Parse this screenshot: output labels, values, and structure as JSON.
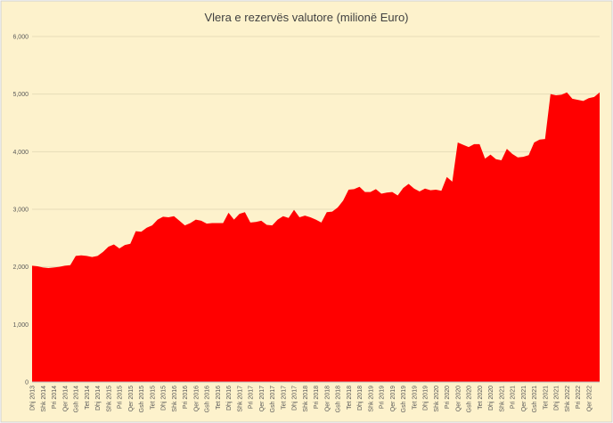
{
  "chart_data": {
    "type": "area",
    "title": "Vlera e rezervës valutore (milionë Euro)",
    "color": "#ff0000",
    "background": "#fdf2cc",
    "grid": true,
    "ylim": [
      0,
      6000
    ],
    "yticks": [
      {
        "value": 0,
        "label": "0"
      },
      {
        "value": 1000,
        "label": "1,000"
      },
      {
        "value": 2000,
        "label": "2,000"
      },
      {
        "value": 3000,
        "label": "3,000"
      },
      {
        "value": 4000,
        "label": "4,000"
      },
      {
        "value": 5000,
        "label": "5,000"
      },
      {
        "value": 6000,
        "label": "6,000"
      }
    ],
    "categories": [
      "Dhj 2013",
      null,
      "Shk 2014",
      null,
      "Pri 2014",
      null,
      "Qer 2014",
      null,
      "Gsh 2014",
      null,
      "Tet 2014",
      null,
      "Dhj 2014",
      null,
      "Shk 2015",
      null,
      "Pri 2015",
      null,
      "Qer 2015",
      null,
      "Gsh 2015",
      null,
      "Tet 2015",
      null,
      "Dhj 2015",
      null,
      "Shk 2016",
      null,
      "Pri 2016",
      null,
      "Qer 2016",
      null,
      "Gsh 2016",
      null,
      "Tet 2016",
      null,
      "Dhj 2016",
      null,
      "Shk 2017",
      null,
      "Pri 2017",
      null,
      "Qer 2017",
      null,
      "Gsh 2017",
      null,
      "Tet 2017",
      null,
      "Dhj 2017",
      null,
      "Shk 2018",
      null,
      "Pri 2018",
      null,
      "Qer 2018",
      null,
      "Gsh 2018",
      null,
      "Tet 2018",
      null,
      "Dhj 2018",
      null,
      "Shk 2019",
      null,
      "Pri 2019",
      null,
      "Qer 2019",
      null,
      "Gsh 2019",
      null,
      "Tet 2019",
      null,
      "Dhj 2019",
      null,
      "Shk 2020",
      null,
      "Pri 2020",
      null,
      "Qer 2020",
      null,
      "Gsh 2020",
      null,
      "Tet 2020",
      null,
      "Dhj 2020",
      null,
      "Shk 2021",
      null,
      "Pri 2021",
      null,
      "Qer 2021",
      null,
      "Gsh 2021",
      null,
      "Tet 2021",
      null,
      "Dhj 2021",
      null,
      "Shk 2022",
      null,
      "Pri 2022",
      null,
      "Qer 2022",
      null,
      null
    ],
    "values": [
      2020,
      2010,
      1990,
      1980,
      1990,
      2000,
      2020,
      2030,
      2190,
      2200,
      2190,
      2170,
      2190,
      2260,
      2350,
      2390,
      2320,
      2380,
      2400,
      2620,
      2610,
      2680,
      2720,
      2820,
      2870,
      2860,
      2880,
      2800,
      2720,
      2760,
      2820,
      2800,
      2750,
      2760,
      2760,
      2760,
      2940,
      2820,
      2920,
      2950,
      2770,
      2780,
      2800,
      2730,
      2720,
      2820,
      2880,
      2850,
      2990,
      2860,
      2890,
      2860,
      2820,
      2770,
      2950,
      2960,
      3030,
      3150,
      3340,
      3350,
      3390,
      3300,
      3300,
      3350,
      3270,
      3290,
      3300,
      3240,
      3370,
      3440,
      3360,
      3310,
      3360,
      3330,
      3340,
      3320,
      3560,
      3480,
      4160,
      4120,
      4080,
      4130,
      4130,
      3880,
      3950,
      3870,
      3850,
      4050,
      3960,
      3900,
      3910,
      3940,
      4160,
      4210,
      4220,
      5000,
      4980,
      4990,
      5030,
      4920,
      4900,
      4880,
      4930,
      4950,
      5030
    ]
  }
}
